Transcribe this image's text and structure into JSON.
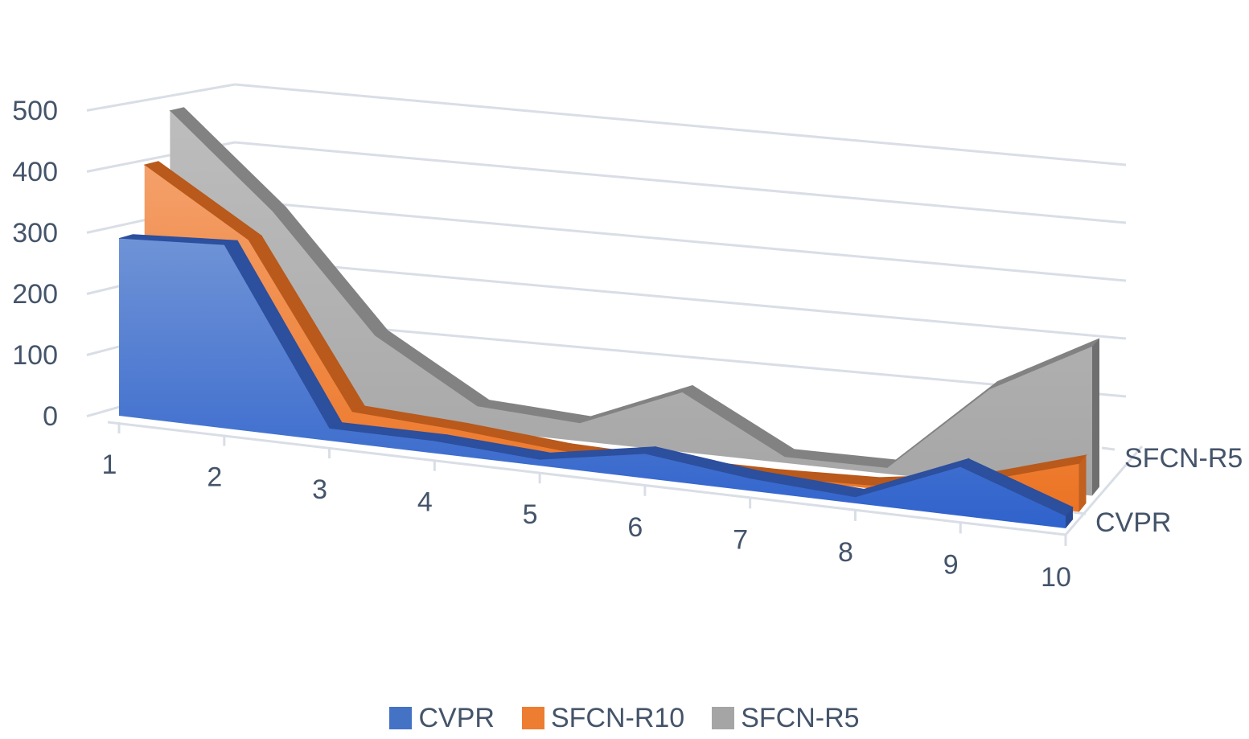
{
  "chart_data": {
    "type": "area",
    "style": "3d",
    "categories": [
      "1",
      "2",
      "3",
      "4",
      "5",
      "6",
      "7",
      "8",
      "9",
      "10"
    ],
    "yticks": [
      "0",
      "100",
      "200",
      "300",
      "400",
      "500"
    ],
    "ylim": [
      0,
      500
    ],
    "grid": true,
    "legend_position": "bottom",
    "depth_axis_labels": [
      "SFCN-R5",
      "CVPR"
    ],
    "series": [
      {
        "name": "CVPR",
        "color": "#4472c4",
        "values": [
          290,
          300,
          20,
          20,
          10,
          40,
          20,
          10,
          80,
          20
        ]
      },
      {
        "name": "SFCN-R10",
        "color": "#ed7d31",
        "values": [
          400,
          295,
          30,
          20,
          5,
          0,
          0,
          5,
          30,
          80
        ]
      },
      {
        "name": "SFCN-R5",
        "color": "#a5a5a5",
        "values": [
          480,
          330,
          140,
          40,
          30,
          100,
          10,
          10,
          160,
          250
        ]
      }
    ]
  }
}
